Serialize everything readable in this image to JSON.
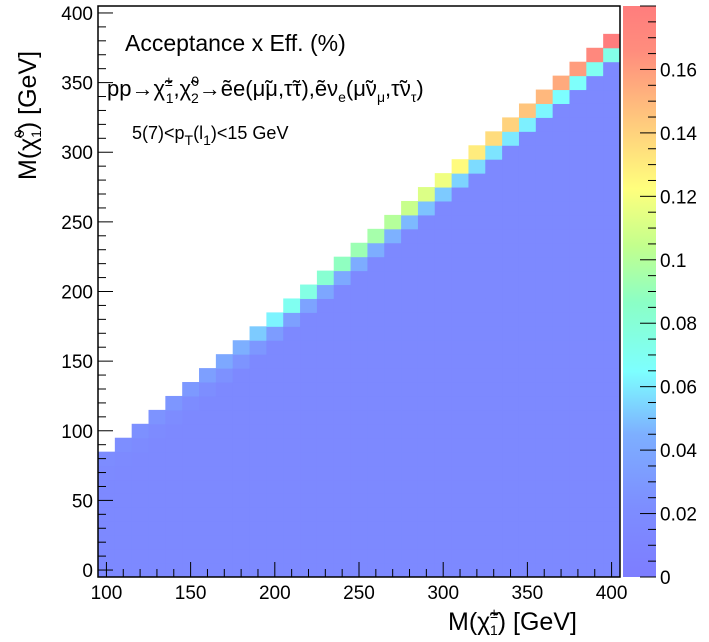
{
  "chart_data": {
    "type": "heatmap",
    "title": "",
    "annotations": {
      "title": "Acceptance x Eff. (%)",
      "process": "pp→χ̃±1χ̃02→ẽe(μ̃μ,τ̃τ),ẽνe(μ̃νμ,τ̃ντ)",
      "cut": "5(7)<pT(l1)<15 GeV"
    },
    "xlabel": "M(χ̃±1) [GeV]",
    "ylabel": "M(χ̃01) [GeV]",
    "xlim": [
      95,
      405
    ],
    "ylim": [
      -5,
      405
    ],
    "x_ticks": [
      "100",
      "150",
      "200",
      "250",
      "300",
      "350",
      "400"
    ],
    "y_ticks": [
      "0",
      "50",
      "100",
      "150",
      "200",
      "250",
      "300",
      "350",
      "400"
    ],
    "colorbar": {
      "range": [
        0,
        0.18
      ],
      "ticks": [
        "0",
        "0.02",
        "0.04",
        "0.06",
        "0.08",
        "0.1",
        "0.12",
        "0.14",
        "0.16"
      ]
    },
    "grid": false,
    "bin_width_x": 10,
    "bin_width_y": 10,
    "z_description": "acceptance x efficiency in percent; z grows toward the diagonal M(chi1_0) ~ M(chi1_pm)",
    "diagonal_edge_z": [
      {
        "x": 100,
        "z": 0.02
      },
      {
        "x": 110,
        "z": 0.022
      },
      {
        "x": 120,
        "z": 0.024
      },
      {
        "x": 130,
        "z": 0.026
      },
      {
        "x": 140,
        "z": 0.028
      },
      {
        "x": 150,
        "z": 0.03
      },
      {
        "x": 160,
        "z": 0.034
      },
      {
        "x": 170,
        "z": 0.04
      },
      {
        "x": 180,
        "z": 0.045
      },
      {
        "x": 190,
        "z": 0.052
      },
      {
        "x": 200,
        "z": 0.062
      },
      {
        "x": 210,
        "z": 0.07
      },
      {
        "x": 220,
        "z": 0.075
      },
      {
        "x": 230,
        "z": 0.082
      },
      {
        "x": 240,
        "z": 0.088
      },
      {
        "x": 250,
        "z": 0.092
      },
      {
        "x": 260,
        "z": 0.095
      },
      {
        "x": 270,
        "z": 0.1
      },
      {
        "x": 280,
        "z": 0.106
      },
      {
        "x": 290,
        "z": 0.112
      },
      {
        "x": 300,
        "z": 0.118
      },
      {
        "x": 310,
        "z": 0.124
      },
      {
        "x": 320,
        "z": 0.13
      },
      {
        "x": 330,
        "z": 0.136
      },
      {
        "x": 340,
        "z": 0.14
      },
      {
        "x": 350,
        "z": 0.145
      },
      {
        "x": 360,
        "z": 0.15
      },
      {
        "x": 370,
        "z": 0.155
      },
      {
        "x": 380,
        "z": 0.16
      },
      {
        "x": 390,
        "z": 0.17
      },
      {
        "x": 400,
        "z": 0.18
      }
    ],
    "interior_z": 0.016
  }
}
